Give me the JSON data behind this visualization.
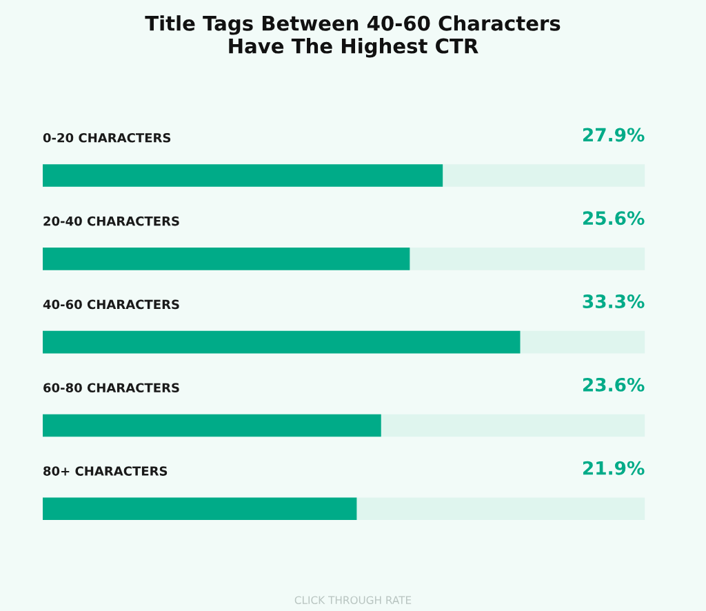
{
  "chart_data": {
    "type": "bar",
    "orientation": "horizontal",
    "title": "Title Tags Between 40-60 Characters\nHave The Highest CTR",
    "annotations": [
      "CLICK THROUGH RATE"
    ],
    "categories": [
      "0-20 CHARACTERS",
      "20-40 CHARACTERS",
      "40-60 CHARACTERS",
      "60-80 CHARACTERS",
      "80+ CHARACTERS"
    ],
    "values": [
      27.9,
      25.6,
      33.3,
      23.6,
      21.9
    ],
    "value_labels": [
      "27.9%",
      "25.6%",
      "33.3%",
      "23.6%",
      "21.9%"
    ],
    "color": "#00ab88",
    "xlim": [
      0,
      42
    ],
    "tick_labels": false
  }
}
